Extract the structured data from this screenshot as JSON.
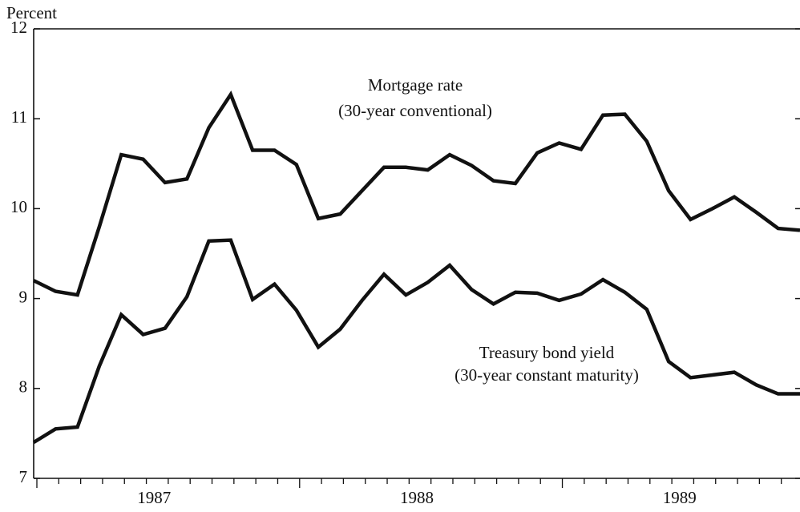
{
  "chart_data": {
    "type": "line",
    "y_label": "Percent",
    "categories": [
      null,
      null,
      null,
      null,
      null,
      "1987",
      null,
      null,
      null,
      null,
      null,
      null,
      null,
      null,
      null,
      null,
      null,
      "1988",
      null,
      null,
      null,
      null,
      null,
      null,
      null,
      null,
      null,
      null,
      null,
      "1989",
      null,
      null,
      null,
      null,
      null,
      null
    ],
    "series": [
      {
        "name": "Mortgage rate",
        "note": "(30-year conventional)",
        "color": "#111111",
        "values": [
          9.2,
          9.08,
          9.04,
          9.8,
          10.6,
          10.55,
          10.29,
          10.33,
          10.9,
          11.27,
          10.65,
          10.65,
          10.49,
          9.89,
          9.94,
          10.2,
          10.46,
          10.46,
          10.43,
          10.6,
          10.48,
          10.31,
          10.28,
          10.62,
          10.73,
          10.66,
          11.04,
          11.05,
          10.75,
          10.2,
          9.88,
          10.0,
          10.13,
          9.96,
          9.78,
          9.76
        ]
      },
      {
        "name": "Treasury bond yield",
        "note": "(30-year constant maturity)",
        "color": "#111111",
        "values": [
          7.4,
          7.55,
          7.57,
          8.25,
          8.82,
          8.6,
          8.67,
          9.02,
          9.64,
          9.65,
          8.99,
          9.16,
          8.87,
          8.46,
          8.66,
          8.98,
          9.27,
          9.04,
          9.18,
          9.37,
          9.1,
          8.94,
          9.07,
          9.06,
          8.98,
          9.05,
          9.21,
          9.07,
          8.88,
          8.3,
          8.12,
          8.15,
          8.18,
          8.04,
          7.94,
          7.94
        ]
      }
    ],
    "ylim": [
      7,
      12
    ],
    "yticks": [
      7,
      8,
      9,
      10,
      11,
      12
    ]
  }
}
